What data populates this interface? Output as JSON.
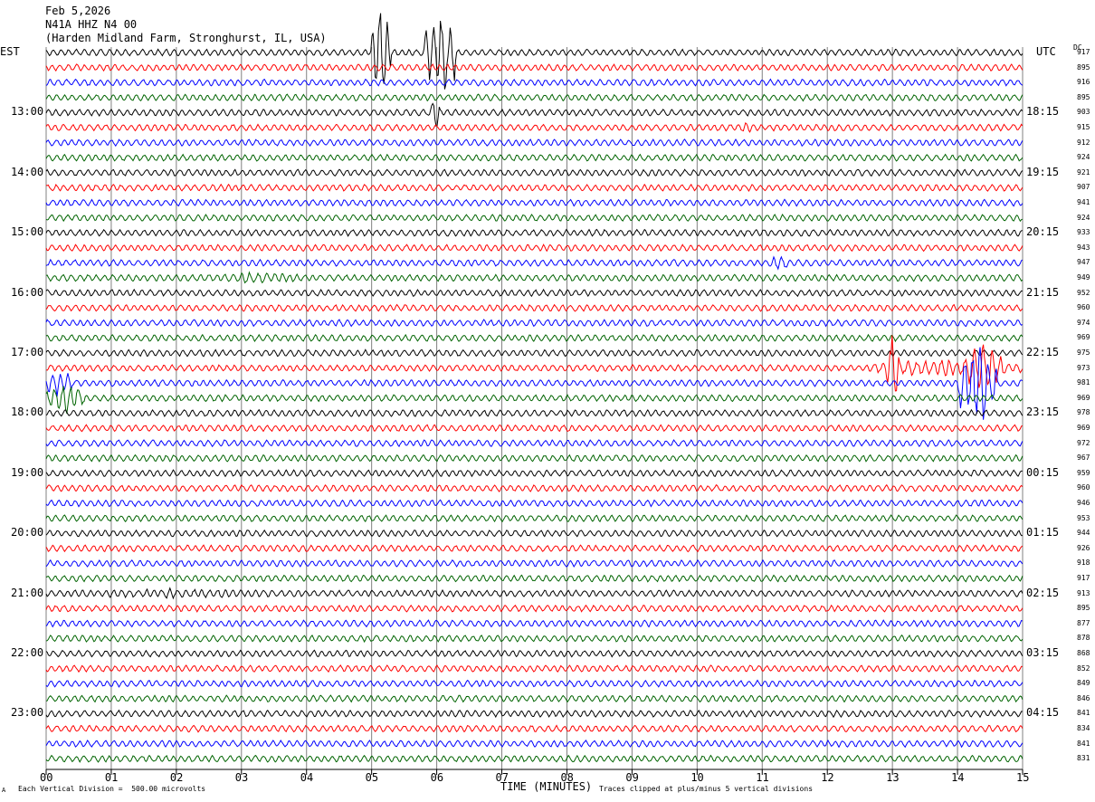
{
  "header": {
    "date": "Feb 5,2026",
    "station": "N41A HHZ N4 00",
    "location": "(Harden Midland Farm, Stronghurst, IL, USA)"
  },
  "left_axis_title": "EST",
  "right_axis_title": "UTC",
  "dc_title": "DC",
  "footer": {
    "scale_note": "Each Vertical Division =  500.00 microvolts",
    "clip_note": "Traces clipped at plus/minus 5 vertical divisions",
    "corner_mark": "A"
  },
  "colors": {
    "cycle": [
      "#000000",
      "#ff0000",
      "#0000ff",
      "#006400"
    ],
    "grid": "#808080"
  },
  "chart_data": {
    "type": "line",
    "title": "",
    "xlabel": "TIME (MINUTES)",
    "xlim": [
      0,
      15
    ],
    "x_ticks": [
      "00",
      "01",
      "02",
      "03",
      "04",
      "05",
      "06",
      "07",
      "08",
      "09",
      "10",
      "11",
      "12",
      "13",
      "14",
      "15"
    ],
    "traces_per_hour": 4,
    "trace_count": 48,
    "left_hour_labels": [
      {
        "trace": 4,
        "label": "13:00"
      },
      {
        "trace": 8,
        "label": "14:00"
      },
      {
        "trace": 12,
        "label": "15:00"
      },
      {
        "trace": 16,
        "label": "16:00"
      },
      {
        "trace": 20,
        "label": "17:00"
      },
      {
        "trace": 24,
        "label": "18:00"
      },
      {
        "trace": 28,
        "label": "19:00"
      },
      {
        "trace": 32,
        "label": "20:00"
      },
      {
        "trace": 36,
        "label": "21:00"
      },
      {
        "trace": 40,
        "label": "22:00"
      },
      {
        "trace": 44,
        "label": "23:00"
      }
    ],
    "right_hour_labels": [
      {
        "trace": 4,
        "label": "18:15"
      },
      {
        "trace": 8,
        "label": "19:15"
      },
      {
        "trace": 12,
        "label": "20:15"
      },
      {
        "trace": 16,
        "label": "21:15"
      },
      {
        "trace": 20,
        "label": "22:15"
      },
      {
        "trace": 24,
        "label": "23:15"
      },
      {
        "trace": 28,
        "label": "00:15"
      },
      {
        "trace": 32,
        "label": "01:15"
      },
      {
        "trace": 36,
        "label": "02:15"
      },
      {
        "trace": 40,
        "label": "03:15"
      },
      {
        "trace": 44,
        "label": "04:15"
      }
    ],
    "dc_offsets": [
      "917",
      "895",
      "916",
      "895",
      "903",
      "915",
      "912",
      "924",
      "921",
      "907",
      "941",
      "924",
      "933",
      "943",
      "947",
      "949",
      "952",
      "960",
      "974",
      "969",
      "975",
      "973",
      "981",
      "969",
      "978",
      "969",
      "972",
      "967",
      "959",
      "960",
      "946",
      "953",
      "944",
      "926",
      "918",
      "917",
      "913",
      "895",
      "877",
      "878",
      "868",
      "852",
      "849",
      "846",
      "841",
      "834",
      "841",
      "831"
    ],
    "events": [
      {
        "trace": 0,
        "x_start": 5.0,
        "x_end": 5.3,
        "amp": 5
      },
      {
        "trace": 0,
        "x_start": 5.8,
        "x_end": 6.3,
        "amp": 5
      },
      {
        "trace": 4,
        "x_start": 5.9,
        "x_end": 6.05,
        "amp": 2
      },
      {
        "trace": 5,
        "x_start": 10.6,
        "x_end": 10.9,
        "amp": 0.6
      },
      {
        "trace": 14,
        "x_start": 11.1,
        "x_end": 11.4,
        "amp": 0.8
      },
      {
        "trace": 15,
        "x_start": 2.2,
        "x_end": 4.0,
        "amp": 0.6
      },
      {
        "trace": 21,
        "x_start": 12.6,
        "x_end": 15.0,
        "amp": 0.9
      },
      {
        "trace": 21,
        "x_start": 12.9,
        "x_end": 13.1,
        "amp": 3.5
      },
      {
        "trace": 21,
        "x_start": 14.1,
        "x_end": 14.7,
        "amp": 2.5
      },
      {
        "trace": 22,
        "x_start": 0.0,
        "x_end": 0.4,
        "amp": 1.5
      },
      {
        "trace": 22,
        "x_start": 14.0,
        "x_end": 14.6,
        "amp": 4.5
      },
      {
        "trace": 23,
        "x_start": 0.0,
        "x_end": 0.6,
        "amp": 1.5
      },
      {
        "trace": 36,
        "x_start": 0.0,
        "x_end": 4.0,
        "amp": 0.5
      }
    ]
  }
}
